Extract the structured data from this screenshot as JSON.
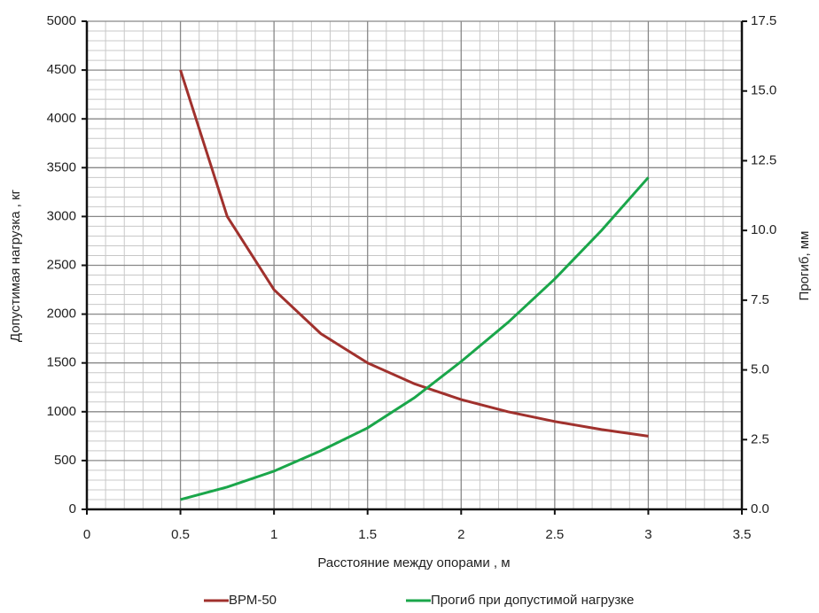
{
  "chart_data": {
    "type": "line",
    "x_label": "Расстояние между опорами , м",
    "y_label": "Допустимая нагрузка ,  кг",
    "y2_label": "Прогиб, мм",
    "x": [
      0.5,
      0.75,
      1,
      1.25,
      1.5,
      1.75,
      2,
      2.25,
      2.5,
      2.75,
      3
    ],
    "series": [
      {
        "name": "ВРМ-50",
        "color": "#a0312d",
        "values": [
          4500,
          3000,
          2250,
          1800,
          1500,
          1286,
          1125,
          1000,
          900,
          818,
          750
        ]
      },
      {
        "name": "Прогиб при допустимой нагрузке",
        "color": "#1aa64a",
        "axis": "y2",
        "values": [
          0.35,
          0.8,
          1.37,
          2.1,
          2.92,
          4.0,
          5.3,
          6.7,
          8.26,
          10.0,
          11.9
        ]
      }
    ],
    "xlim": [
      0,
      3.5
    ],
    "xticks": [
      0,
      0.5,
      1,
      1.5,
      2,
      2.5,
      3,
      3.5
    ],
    "ylim": [
      0,
      5000
    ],
    "yticks": [
      0,
      500,
      1000,
      1500,
      2000,
      2500,
      3000,
      3500,
      4000,
      4500,
      5000
    ],
    "y2lim": [
      0,
      17.5
    ],
    "y2ticks": [
      {
        "value": 0,
        "label": "0.0"
      },
      2.5,
      {
        "value": 5,
        "label": "5.0"
      },
      7.5,
      {
        "value": 10,
        "label": "10.0"
      },
      12.5,
      {
        "value": 15,
        "label": "15.0"
      },
      17.5
    ],
    "grid": true,
    "legend": "bottom"
  }
}
